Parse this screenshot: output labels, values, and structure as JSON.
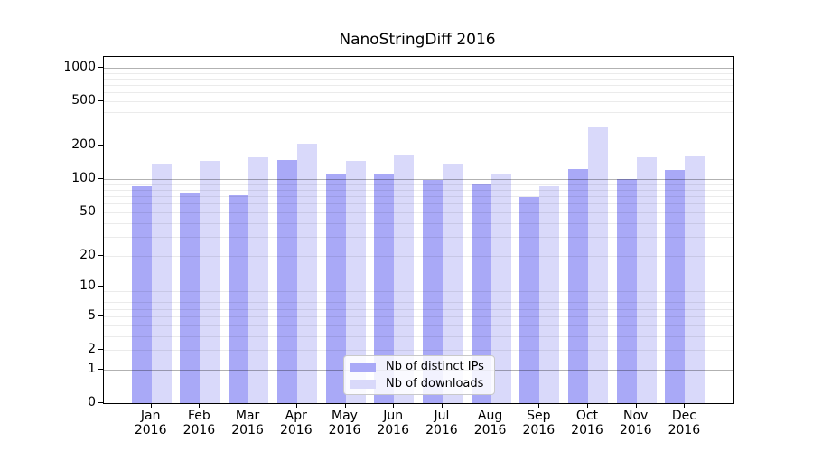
{
  "chart_data": {
    "type": "bar",
    "title": "NanoStringDiff 2016",
    "months": [
      "Jan",
      "Feb",
      "Mar",
      "Apr",
      "May",
      "Jun",
      "Jul",
      "Aug",
      "Sep",
      "Oct",
      "Nov",
      "Dec"
    ],
    "year": "2016",
    "series": [
      {
        "name": "Nb of distinct IPs",
        "color": "#a9a9f7",
        "values": [
          87,
          76,
          71,
          148,
          111,
          113,
          98,
          90,
          69,
          124,
          101,
          122
        ]
      },
      {
        "name": "Nb of downloads",
        "color": "#d9d9fa",
        "values": [
          139,
          146,
          158,
          210,
          146,
          163,
          137,
          110,
          86,
          296,
          157,
          159
        ]
      }
    ],
    "yscale": "log1p",
    "yticks": [
      0,
      1,
      2,
      5,
      10,
      20,
      50,
      100,
      200,
      500,
      1000
    ],
    "ylim": [
      0,
      1250
    ],
    "xlabel": "",
    "ylabel": "",
    "grid": {
      "major_color": "rgba(0,0,0,0.30)",
      "minor_color": "rgba(0,0,0,0.08)"
    },
    "legend_position": "bottom-center"
  }
}
